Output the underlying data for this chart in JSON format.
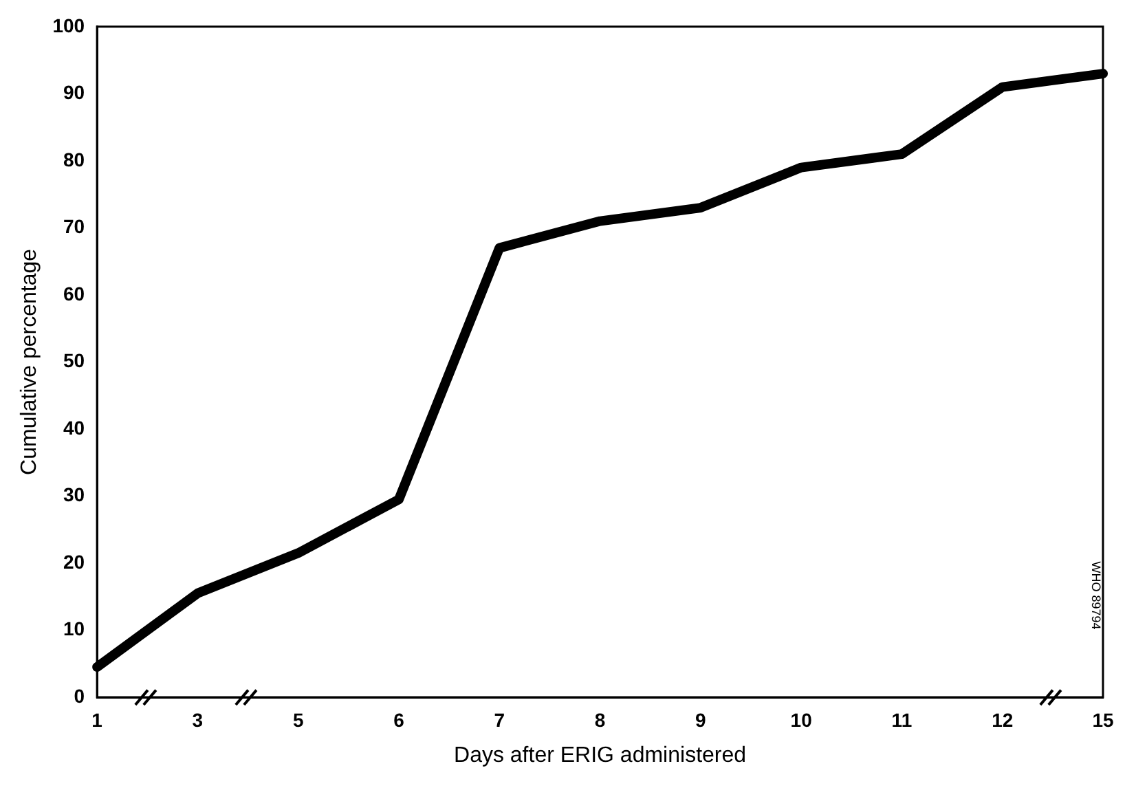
{
  "chart_data": {
    "type": "line",
    "xlabel": "Days after ERIG administered",
    "ylabel": "Cumulative percentage",
    "categories": [
      "1",
      "3",
      "5",
      "6",
      "7",
      "8",
      "9",
      "10",
      "11",
      "12",
      "15"
    ],
    "series": [
      {
        "color": "#000000",
        "values": [
          4.5,
          15.5,
          21.5,
          29.5,
          67,
          71,
          73,
          79,
          81,
          91,
          93
        ]
      }
    ],
    "ylim": [
      0,
      100
    ],
    "yticks": [
      0,
      10,
      20,
      30,
      40,
      50,
      60,
      70,
      80,
      90,
      100
    ],
    "grid": false,
    "legend": false,
    "marker": "none",
    "line_style": "solid",
    "annotations": [
      "WHO 89794"
    ]
  }
}
